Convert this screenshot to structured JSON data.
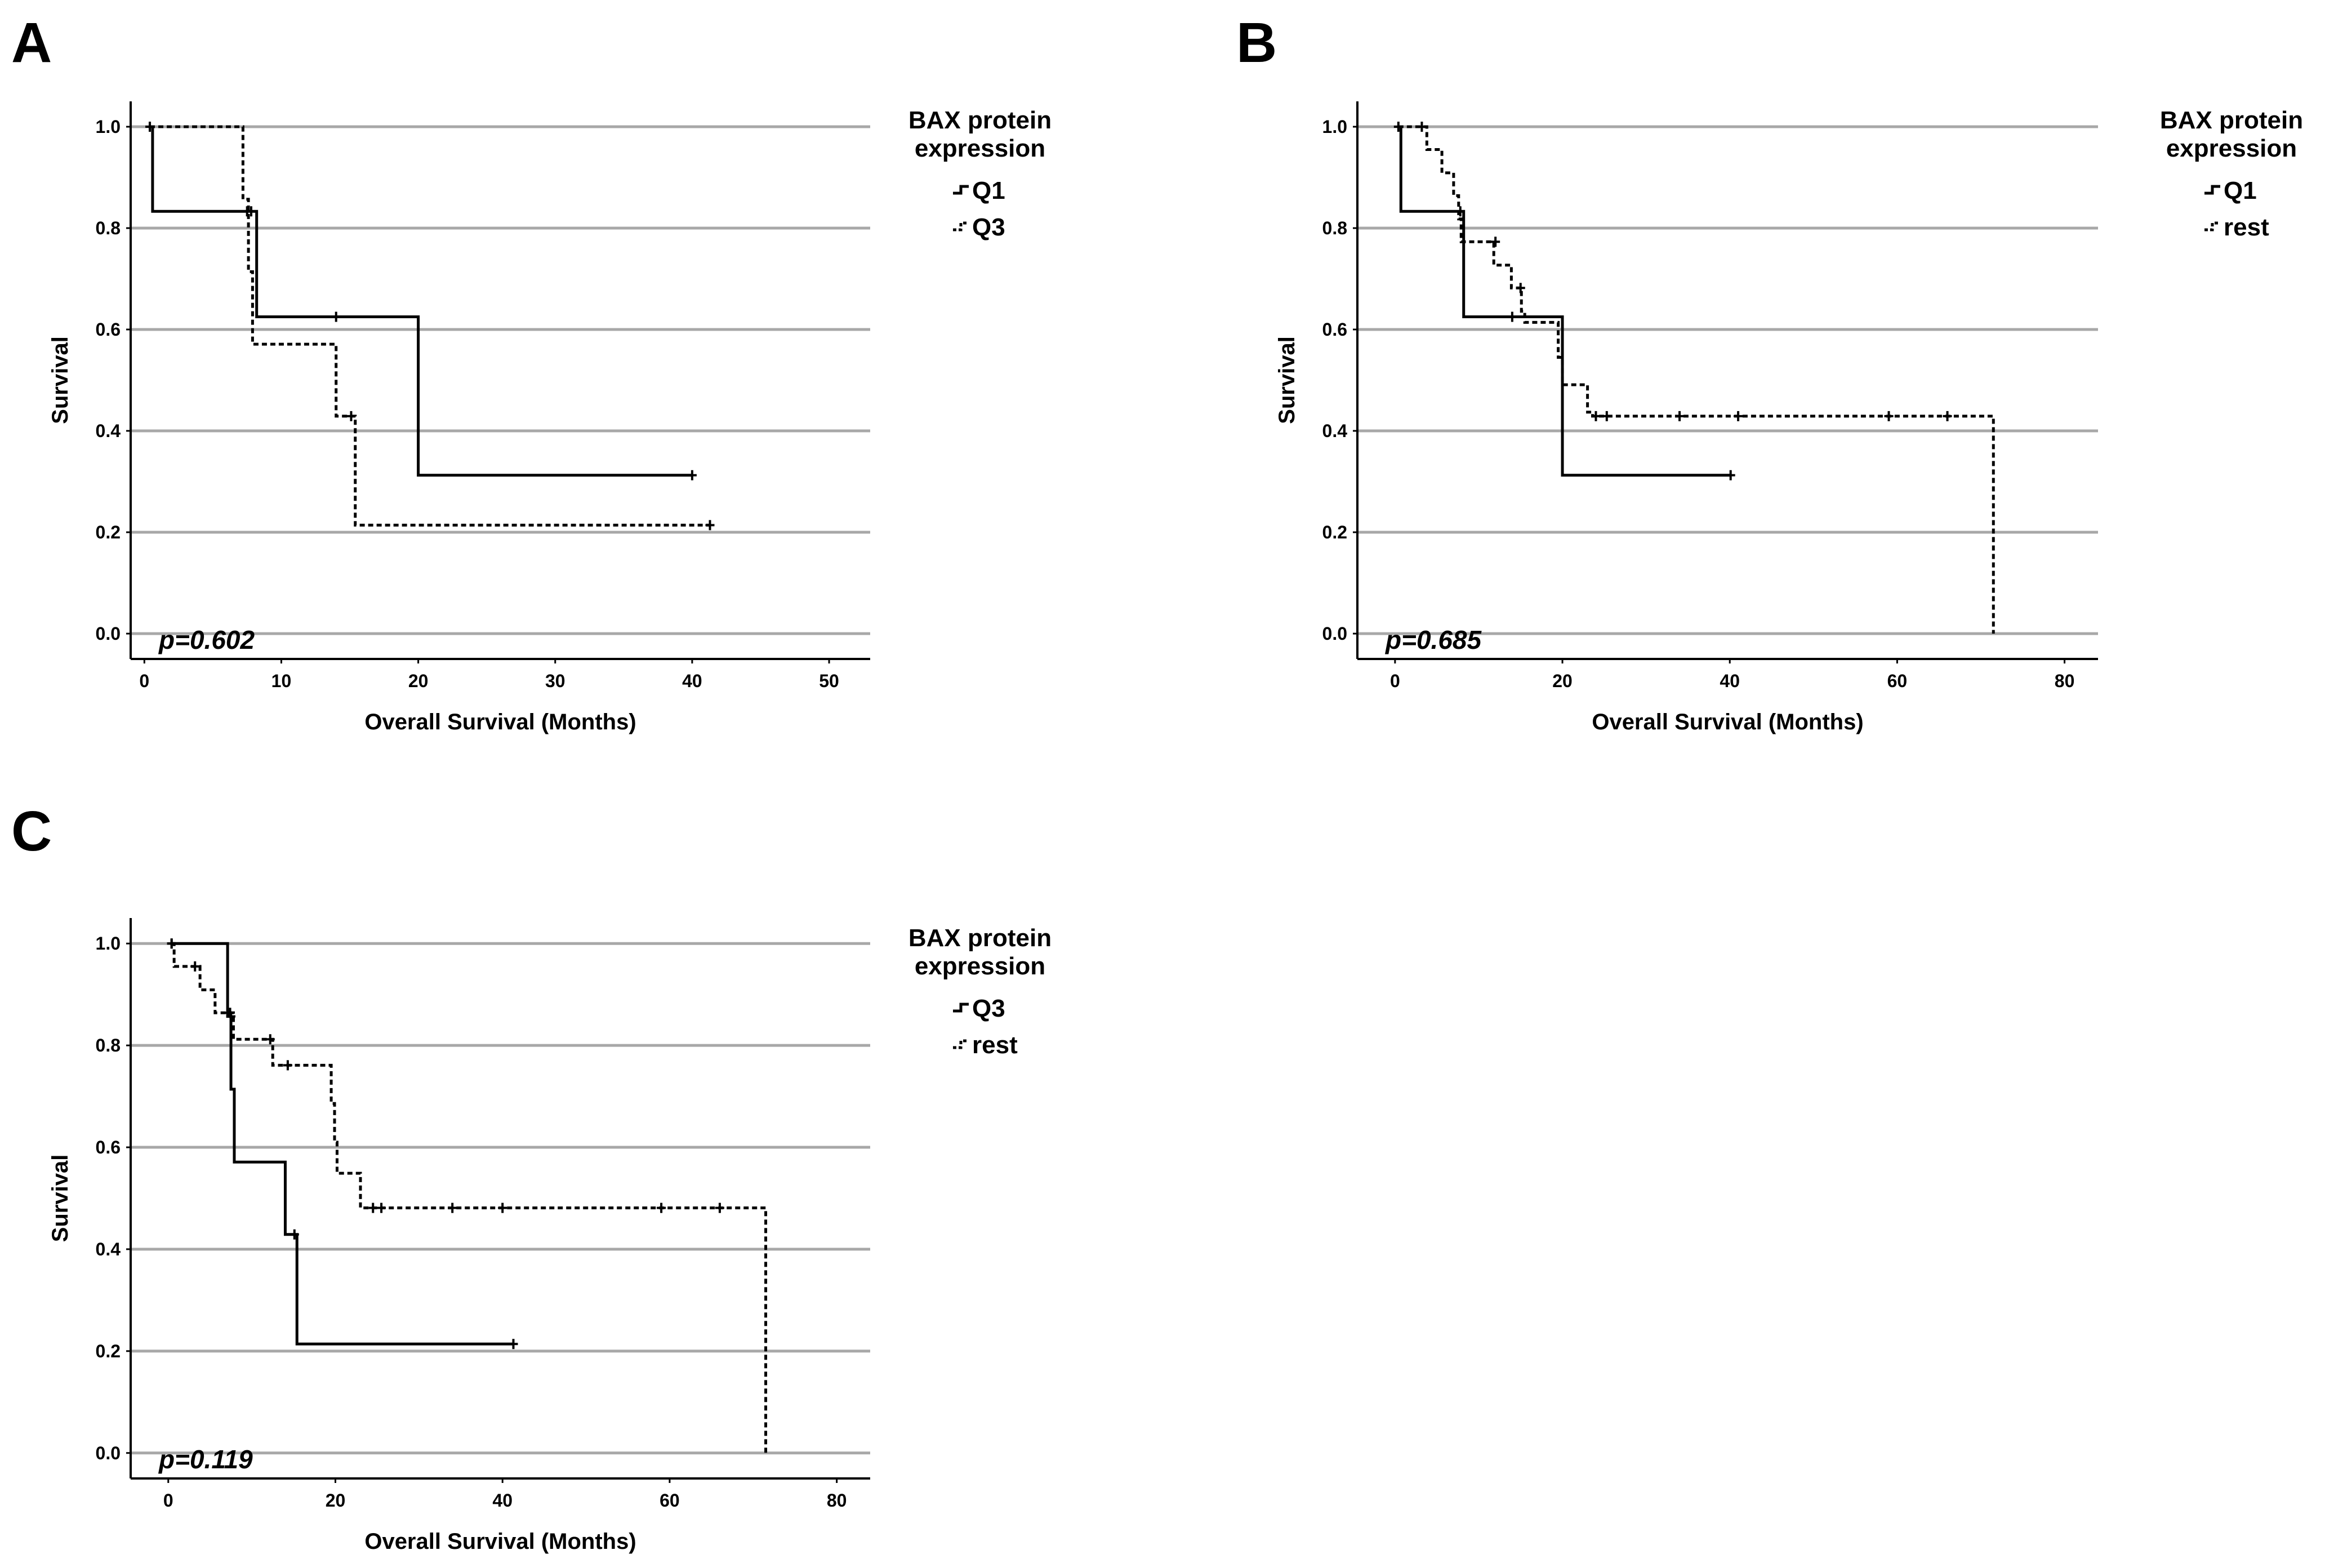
{
  "chart_data": [
    {
      "type": "line",
      "panel": "A",
      "xlabel": "Overall Survival (Months)",
      "ylabel": "Survival",
      "xlim": [
        -1,
        53
      ],
      "ylim": [
        -0.05,
        1.05
      ],
      "xticks": [
        0,
        10,
        20,
        30,
        40,
        50
      ],
      "yticks": [
        0.0,
        0.2,
        0.4,
        0.6,
        0.8,
        1.0
      ],
      "grid": "horizontal",
      "legend_position": "right",
      "legend_title": [
        "BAX protein",
        "expression"
      ],
      "annotation": "p=0.602",
      "series": [
        {
          "name": "Q1",
          "style": "solid",
          "steps": [
            [
              0.4,
              1.0
            ],
            [
              0.6,
              0.833
            ],
            [
              8.2,
              0.625
            ],
            [
              20,
              0.3125
            ],
            [
              40,
              0.3125
            ]
          ],
          "censored": [
            [
              0.4,
              1.0
            ],
            [
              7.8,
              0.833
            ],
            [
              14,
              0.625
            ],
            [
              40,
              0.3125
            ]
          ]
        },
        {
          "name": "Q3",
          "style": "dashed",
          "steps": [
            [
              0.4,
              1.0
            ],
            [
              7.2,
              0.857
            ],
            [
              7.6,
              0.714
            ],
            [
              7.9,
              0.571
            ],
            [
              14,
              0.429
            ],
            [
              15.4,
              0.214
            ],
            [
              41.3,
              0.214
            ]
          ],
          "censored": [
            [
              0.4,
              1.0
            ],
            [
              7.5,
              0.833
            ],
            [
              15.1,
              0.429
            ],
            [
              41.3,
              0.214
            ]
          ]
        }
      ]
    },
    {
      "type": "line",
      "panel": "B",
      "xlabel": "Overall Survival (Months)",
      "ylabel": "Survival",
      "xlim": [
        -4.5,
        84
      ],
      "ylim": [
        -0.05,
        1.05
      ],
      "xticks": [
        0,
        20,
        40,
        60,
        80
      ],
      "yticks": [
        0.0,
        0.2,
        0.4,
        0.6,
        0.8,
        1.0
      ],
      "grid": "horizontal",
      "legend_position": "right",
      "legend_title": [
        "BAX protein",
        "expression"
      ],
      "annotation": "p=0.685",
      "series": [
        {
          "name": "Q1",
          "style": "solid",
          "steps": [
            [
              0.4,
              1.0
            ],
            [
              0.7,
              0.833
            ],
            [
              8.2,
              0.625
            ],
            [
              20,
              0.3125
            ],
            [
              40.1,
              0.3125
            ]
          ],
          "censored": [
            [
              0.4,
              1.0
            ],
            [
              7.8,
              0.833
            ],
            [
              14,
              0.625
            ],
            [
              40.1,
              0.3125
            ]
          ]
        },
        {
          "name": "rest",
          "style": "dashed",
          "steps": [
            [
              0.4,
              1.0
            ],
            [
              3.8,
              0.955
            ],
            [
              5.6,
              0.909
            ],
            [
              7,
              0.864
            ],
            [
              7.6,
              0.818
            ],
            [
              7.9,
              0.773
            ],
            [
              11.8,
              0.727
            ],
            [
              13.9,
              0.682
            ],
            [
              15.1,
              0.636
            ],
            [
              15.5,
              0.614
            ],
            [
              19.5,
              0.545
            ],
            [
              20,
              0.491
            ],
            [
              23,
              0.437
            ],
            [
              23.6,
              0.429
            ],
            [
              71.5,
              0.0
            ]
          ],
          "censored": [
            [
              3.2,
              1.0
            ],
            [
              12,
              0.773
            ],
            [
              15,
              0.682
            ],
            [
              24,
              0.429
            ],
            [
              25.3,
              0.429
            ],
            [
              34,
              0.429
            ],
            [
              41,
              0.429
            ],
            [
              59,
              0.429
            ],
            [
              66,
              0.429
            ]
          ]
        }
      ]
    },
    {
      "type": "line",
      "panel": "C",
      "xlabel": "Overall Survival (Months)",
      "ylabel": "Survival",
      "xlim": [
        -4.5,
        84
      ],
      "ylim": [
        -0.05,
        1.05
      ],
      "xticks": [
        0,
        20,
        40,
        60,
        80
      ],
      "yticks": [
        0.0,
        0.2,
        0.4,
        0.6,
        0.8,
        1.0
      ],
      "grid": "horizontal",
      "legend_position": "right",
      "legend_title": [
        "BAX protein",
        "expression"
      ],
      "annotation": "p=0.119",
      "series": [
        {
          "name": "Q3",
          "style": "solid",
          "steps": [
            [
              0.4,
              1.0
            ],
            [
              7.1,
              0.857
            ],
            [
              7.5,
              0.714
            ],
            [
              7.9,
              0.571
            ],
            [
              14,
              0.429
            ],
            [
              15.4,
              0.214
            ],
            [
              41.3,
              0.214
            ]
          ],
          "censored": [
            [
              0.4,
              1.0
            ],
            [
              7.5,
              0.857
            ],
            [
              15.1,
              0.429
            ],
            [
              41.3,
              0.214
            ]
          ]
        },
        {
          "name": "rest",
          "style": "dashed",
          "steps": [
            [
              0.4,
              1.0
            ],
            [
              0.7,
              0.955
            ],
            [
              3.8,
              0.909
            ],
            [
              5.6,
              0.864
            ],
            [
              7.8,
              0.812
            ],
            [
              12.5,
              0.761
            ],
            [
              19.5,
              0.686
            ],
            [
              19.9,
              0.61
            ],
            [
              20.2,
              0.549
            ],
            [
              23,
              0.481
            ],
            [
              71.5,
              0.0
            ]
          ],
          "censored": [
            [
              0.4,
              1.0
            ],
            [
              3.2,
              0.955
            ],
            [
              7.4,
              0.864
            ],
            [
              12.2,
              0.812
            ],
            [
              14.3,
              0.761
            ],
            [
              24.5,
              0.481
            ],
            [
              25.5,
              0.481
            ],
            [
              34,
              0.481
            ],
            [
              40,
              0.481
            ],
            [
              59,
              0.481
            ],
            [
              66,
              0.481
            ]
          ]
        }
      ]
    }
  ]
}
